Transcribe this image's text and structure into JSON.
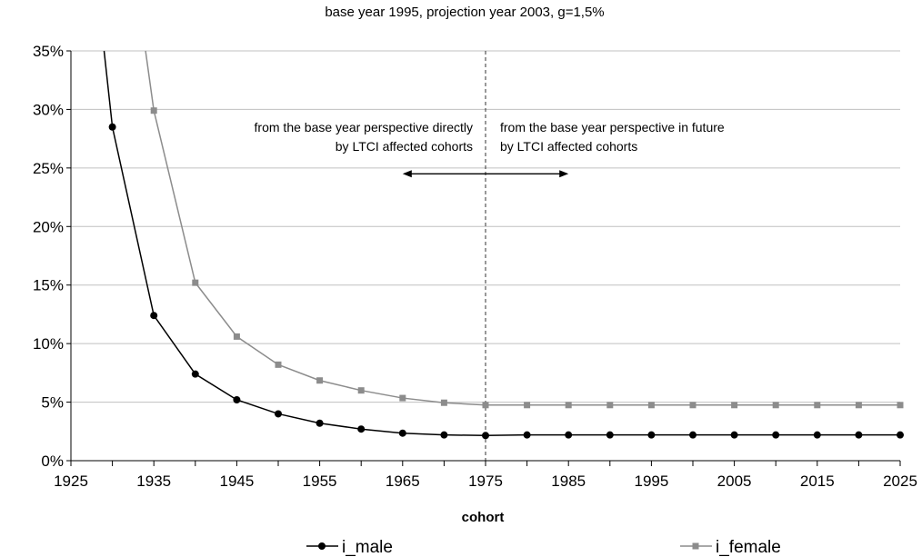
{
  "chart_data": {
    "type": "line",
    "title": "base year 1995, projection year 2003, g=1,5%",
    "xlabel": "cohort",
    "ylabel": "",
    "xlim": [
      1925,
      2025
    ],
    "ylim": [
      0,
      35
    ],
    "x_ticks": [
      1925,
      1935,
      1945,
      1955,
      1965,
      1975,
      1985,
      1995,
      2005,
      2015,
      2025
    ],
    "x_tick_labels": [
      "1925",
      "1935",
      "1945",
      "1955",
      "1965",
      "1975",
      "1985",
      "1995",
      "2005",
      "2015",
      "2025"
    ],
    "y_ticks": [
      0,
      5,
      10,
      15,
      20,
      25,
      30,
      35
    ],
    "y_tick_labels": [
      "0%",
      "5%",
      "10%",
      "15%",
      "20%",
      "25%",
      "30%",
      "35%"
    ],
    "grid": "horizontal",
    "legend_position": "bottom",
    "divider_x": 1975,
    "annotations": {
      "left_line1": "from the base year perspective directly",
      "left_line2": "by LTCI affected cohorts",
      "right_line1": "from the base year perspective in future",
      "right_line2": "by LTCI affected cohorts"
    },
    "arrow": {
      "from": 1965,
      "to": 1985,
      "y": 24.5
    },
    "series": [
      {
        "name": "i_male",
        "color": "#000000",
        "marker": "circle",
        "entry": [
          1929,
          35
        ],
        "x": [
          1930,
          1935,
          1940,
          1945,
          1950,
          1955,
          1960,
          1965,
          1970,
          1975,
          1980,
          1985,
          1990,
          1995,
          2000,
          2005,
          2010,
          2015,
          2020,
          2025
        ],
        "values": [
          28.5,
          12.4,
          7.4,
          5.2,
          4.0,
          3.2,
          2.7,
          2.35,
          2.2,
          2.15,
          2.2,
          2.2,
          2.2,
          2.2,
          2.2,
          2.2,
          2.2,
          2.2,
          2.2,
          2.2
        ]
      },
      {
        "name": "i_female",
        "color": "#8c8c8c",
        "marker": "square",
        "entry": [
          1934,
          35
        ],
        "x": [
          1935,
          1940,
          1945,
          1950,
          1955,
          1960,
          1965,
          1970,
          1975,
          1980,
          1985,
          1990,
          1995,
          2000,
          2005,
          2010,
          2015,
          2020,
          2025
        ],
        "values": [
          29.9,
          15.2,
          10.6,
          8.2,
          6.85,
          6.0,
          5.35,
          4.95,
          4.75,
          4.75,
          4.75,
          4.75,
          4.75,
          4.75,
          4.75,
          4.75,
          4.75,
          4.75,
          4.75
        ]
      }
    ]
  }
}
